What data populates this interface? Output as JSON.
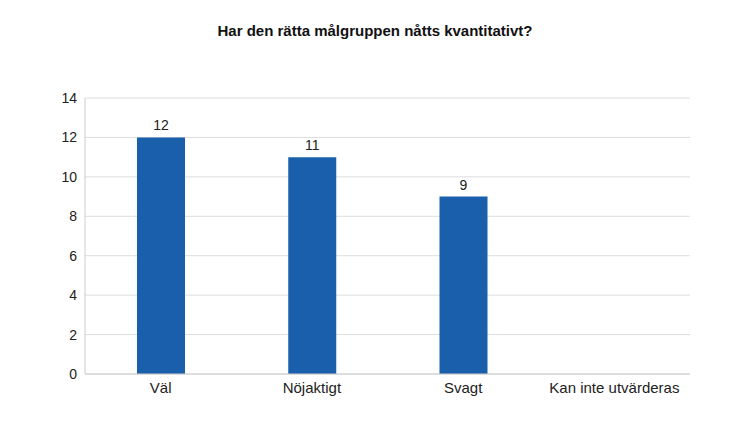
{
  "chart_data": {
    "type": "bar",
    "title": "Har den rätta målgruppen nåtts kvantitativt?",
    "categories": [
      "Väl",
      "Nöjaktigt",
      "Svagt",
      "Kan inte utvärderas"
    ],
    "values": [
      12,
      11,
      9,
      null
    ],
    "color": "#1a5fac",
    "ylim": [
      0,
      14
    ],
    "yticks": [
      0,
      2,
      4,
      6,
      8,
      10,
      12,
      14
    ],
    "grid": true,
    "data_labels": true
  }
}
